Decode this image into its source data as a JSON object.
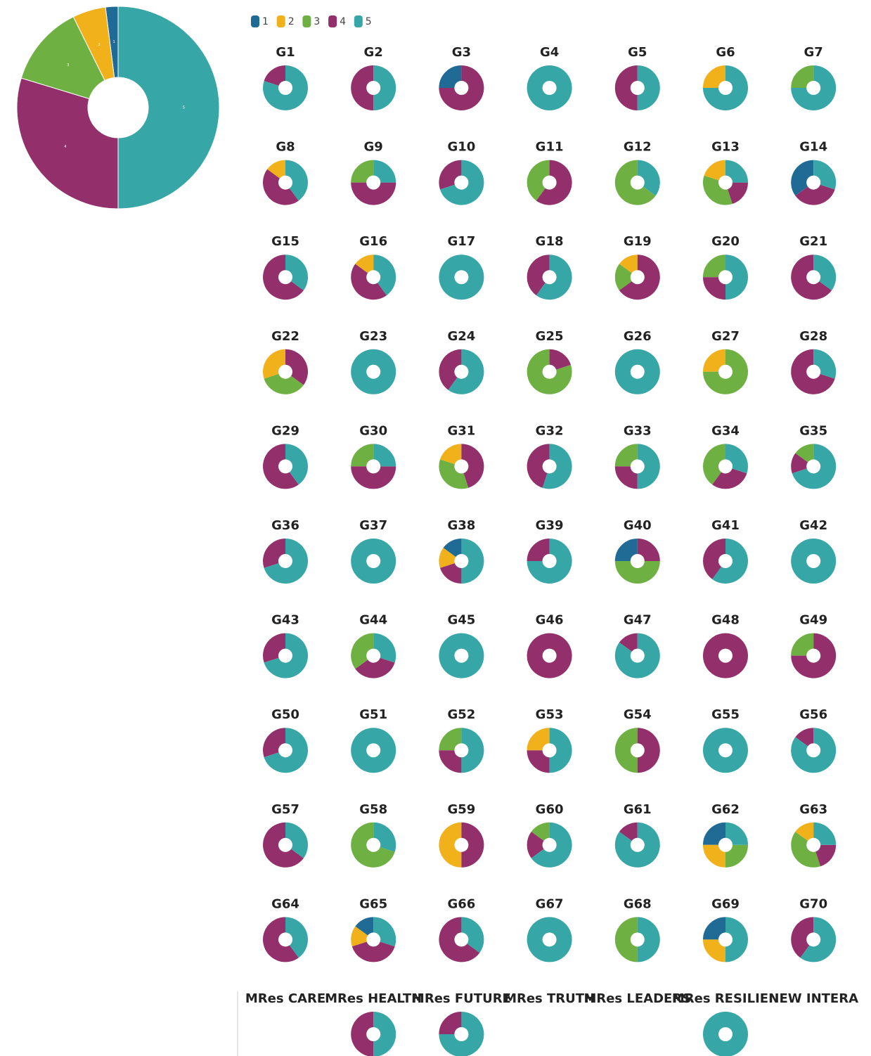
{
  "legend": {
    "labels": [
      "1",
      "2",
      "3",
      "4",
      "5"
    ],
    "colors": [
      "#1f6b96",
      "#f0b11b",
      "#6fb043",
      "#93306b",
      "#36a6a6"
    ]
  },
  "chart_data": [
    {
      "type": "pie",
      "categories": [
        "1",
        "2",
        "3",
        "4",
        "5"
      ],
      "values": [
        2,
        5.3,
        13,
        29.7,
        50
      ]
    },
    {
      "type": "pie",
      "title": "G1",
      "values": [
        0,
        0,
        0,
        20,
        80
      ]
    },
    {
      "type": "pie",
      "title": "G2",
      "values": [
        0,
        0,
        0,
        50,
        50
      ]
    },
    {
      "type": "pie",
      "title": "G3",
      "values": [
        25,
        0,
        0,
        75,
        0
      ]
    },
    {
      "type": "pie",
      "title": "G4",
      "values": [
        0,
        0,
        0,
        0,
        100
      ]
    },
    {
      "type": "pie",
      "title": "G5",
      "values": [
        0,
        0,
        0,
        50,
        50
      ]
    },
    {
      "type": "pie",
      "title": "G6",
      "values": [
        0,
        25,
        0,
        0,
        75
      ]
    },
    {
      "type": "pie",
      "title": "G7",
      "values": [
        0,
        0,
        25,
        0,
        75
      ]
    },
    {
      "type": "pie",
      "title": "G8",
      "values": [
        0,
        15,
        0,
        45,
        40
      ]
    },
    {
      "type": "pie",
      "title": "G9",
      "values": [
        0,
        0,
        25,
        50,
        25
      ]
    },
    {
      "type": "pie",
      "title": "G10",
      "values": [
        0,
        0,
        0,
        30,
        70
      ]
    },
    {
      "type": "pie",
      "title": "G11",
      "values": [
        0,
        0,
        40,
        60,
        0
      ]
    },
    {
      "type": "pie",
      "title": "G12",
      "values": [
        0,
        0,
        65,
        0,
        35
      ]
    },
    {
      "type": "pie",
      "title": "G13",
      "values": [
        0,
        20,
        35,
        20,
        25
      ]
    },
    {
      "type": "pie",
      "title": "G14",
      "values": [
        35,
        0,
        0,
        35,
        30
      ]
    },
    {
      "type": "pie",
      "title": "G15",
      "values": [
        0,
        0,
        0,
        65,
        35
      ]
    },
    {
      "type": "pie",
      "title": "G16",
      "values": [
        0,
        15,
        0,
        45,
        40
      ]
    },
    {
      "type": "pie",
      "title": "G17",
      "values": [
        0,
        0,
        0,
        0,
        100
      ]
    },
    {
      "type": "pie",
      "title": "G18",
      "values": [
        0,
        0,
        0,
        40,
        60
      ]
    },
    {
      "type": "pie",
      "title": "G19",
      "values": [
        0,
        15,
        20,
        65,
        0
      ]
    },
    {
      "type": "pie",
      "title": "G20",
      "values": [
        0,
        0,
        25,
        25,
        50
      ]
    },
    {
      "type": "pie",
      "title": "G21",
      "values": [
        0,
        0,
        0,
        65,
        35
      ]
    },
    {
      "type": "pie",
      "title": "G22",
      "values": [
        0,
        30,
        35,
        35,
        0
      ]
    },
    {
      "type": "pie",
      "title": "G23",
      "values": [
        0,
        0,
        0,
        0,
        100
      ]
    },
    {
      "type": "pie",
      "title": "G24",
      "values": [
        0,
        0,
        0,
        40,
        60
      ]
    },
    {
      "type": "pie",
      "title": "G25",
      "values": [
        0,
        0,
        80,
        20,
        0
      ]
    },
    {
      "type": "pie",
      "title": "G26",
      "values": [
        0,
        0,
        0,
        0,
        100
      ]
    },
    {
      "type": "pie",
      "title": "G27",
      "values": [
        0,
        25,
        75,
        0,
        0
      ]
    },
    {
      "type": "pie",
      "title": "G28",
      "values": [
        0,
        0,
        0,
        70,
        30
      ]
    },
    {
      "type": "pie",
      "title": "G29",
      "values": [
        0,
        0,
        0,
        60,
        40
      ]
    },
    {
      "type": "pie",
      "title": "G30",
      "values": [
        0,
        0,
        25,
        50,
        25
      ]
    },
    {
      "type": "pie",
      "title": "G31",
      "values": [
        0,
        20,
        35,
        45,
        0
      ]
    },
    {
      "type": "pie",
      "title": "G32",
      "values": [
        0,
        0,
        0,
        45,
        55
      ]
    },
    {
      "type": "pie",
      "title": "G33",
      "values": [
        0,
        0,
        25,
        25,
        50
      ]
    },
    {
      "type": "pie",
      "title": "G34",
      "values": [
        0,
        0,
        40,
        30,
        30
      ]
    },
    {
      "type": "pie",
      "title": "G35",
      "values": [
        0,
        0,
        15,
        15,
        70
      ]
    },
    {
      "type": "pie",
      "title": "G36",
      "values": [
        0,
        0,
        0,
        30,
        70
      ]
    },
    {
      "type": "pie",
      "title": "G37",
      "values": [
        0,
        0,
        0,
        0,
        100
      ]
    },
    {
      "type": "pie",
      "title": "G38",
      "values": [
        15,
        15,
        0,
        20,
        50
      ]
    },
    {
      "type": "pie",
      "title": "G39",
      "values": [
        0,
        0,
        0,
        25,
        75
      ]
    },
    {
      "type": "pie",
      "title": "G40",
      "values": [
        25,
        0,
        50,
        25,
        0
      ]
    },
    {
      "type": "pie",
      "title": "G41",
      "values": [
        0,
        0,
        0,
        40,
        60
      ]
    },
    {
      "type": "pie",
      "title": "G42",
      "values": [
        0,
        0,
        0,
        0,
        100
      ]
    },
    {
      "type": "pie",
      "title": "G43",
      "values": [
        0,
        0,
        0,
        30,
        70
      ]
    },
    {
      "type": "pie",
      "title": "G44",
      "values": [
        0,
        0,
        35,
        35,
        30
      ]
    },
    {
      "type": "pie",
      "title": "G45",
      "values": [
        0,
        0,
        0,
        0,
        100
      ]
    },
    {
      "type": "pie",
      "title": "G46",
      "values": [
        0,
        0,
        0,
        100,
        0
      ]
    },
    {
      "type": "pie",
      "title": "G47",
      "values": [
        0,
        0,
        0,
        15,
        85
      ]
    },
    {
      "type": "pie",
      "title": "G48",
      "values": [
        0,
        0,
        0,
        100,
        0
      ]
    },
    {
      "type": "pie",
      "title": "G49",
      "values": [
        0,
        0,
        25,
        75,
        0
      ]
    },
    {
      "type": "pie",
      "title": "G50",
      "values": [
        0,
        0,
        0,
        30,
        70
      ]
    },
    {
      "type": "pie",
      "title": "G51",
      "values": [
        0,
        0,
        0,
        0,
        100
      ]
    },
    {
      "type": "pie",
      "title": "G52",
      "values": [
        0,
        0,
        25,
        25,
        50
      ]
    },
    {
      "type": "pie",
      "title": "G53",
      "values": [
        0,
        25,
        0,
        25,
        50
      ]
    },
    {
      "type": "pie",
      "title": "G54",
      "values": [
        0,
        0,
        50,
        50,
        0
      ]
    },
    {
      "type": "pie",
      "title": "G55",
      "values": [
        0,
        0,
        0,
        0,
        100
      ]
    },
    {
      "type": "pie",
      "title": "G56",
      "values": [
        0,
        0,
        0,
        15,
        85
      ]
    },
    {
      "type": "pie",
      "title": "G57",
      "values": [
        0,
        0,
        0,
        65,
        35
      ]
    },
    {
      "type": "pie",
      "title": "G58",
      "values": [
        0,
        0,
        70,
        0,
        30
      ]
    },
    {
      "type": "pie",
      "title": "G59",
      "values": [
        0,
        50,
        0,
        50,
        0
      ]
    },
    {
      "type": "pie",
      "title": "G60",
      "values": [
        0,
        0,
        15,
        20,
        65
      ]
    },
    {
      "type": "pie",
      "title": "G61",
      "values": [
        0,
        0,
        0,
        15,
        85
      ]
    },
    {
      "type": "pie",
      "title": "G62",
      "values": [
        25,
        25,
        25,
        0,
        25
      ]
    },
    {
      "type": "pie",
      "title": "G63",
      "values": [
        0,
        15,
        40,
        20,
        25
      ]
    },
    {
      "type": "pie",
      "title": "G64",
      "values": [
        0,
        0,
        0,
        60,
        40
      ]
    },
    {
      "type": "pie",
      "title": "G65",
      "values": [
        15,
        15,
        0,
        40,
        30
      ]
    },
    {
      "type": "pie",
      "title": "G66",
      "values": [
        0,
        0,
        0,
        65,
        35
      ]
    },
    {
      "type": "pie",
      "title": "G67",
      "values": [
        0,
        0,
        0,
        0,
        100
      ]
    },
    {
      "type": "pie",
      "title": "G68",
      "values": [
        0,
        0,
        50,
        0,
        50
      ]
    },
    {
      "type": "pie",
      "title": "G69",
      "values": [
        25,
        25,
        0,
        0,
        50
      ]
    },
    {
      "type": "pie",
      "title": "G70",
      "values": [
        0,
        0,
        0,
        40,
        60
      ]
    },
    {
      "type": "pie",
      "title": "MRes CARE"
    },
    {
      "type": "pie",
      "title": "MRes HEALTH",
      "values": [
        0,
        0,
        0,
        50,
        50
      ]
    },
    {
      "type": "pie",
      "title": "MRes FUTURE",
      "values": [
        0,
        0,
        0,
        25,
        75
      ]
    },
    {
      "type": "pie",
      "title": "MRes TRUTH"
    },
    {
      "type": "pie",
      "title": "MRes LEADERS"
    },
    {
      "type": "pie",
      "title": "MRes RESILIEN",
      "values": [
        0,
        0,
        0,
        0,
        100
      ]
    },
    {
      "type": "pie",
      "title": "NEW INTERA"
    }
  ]
}
